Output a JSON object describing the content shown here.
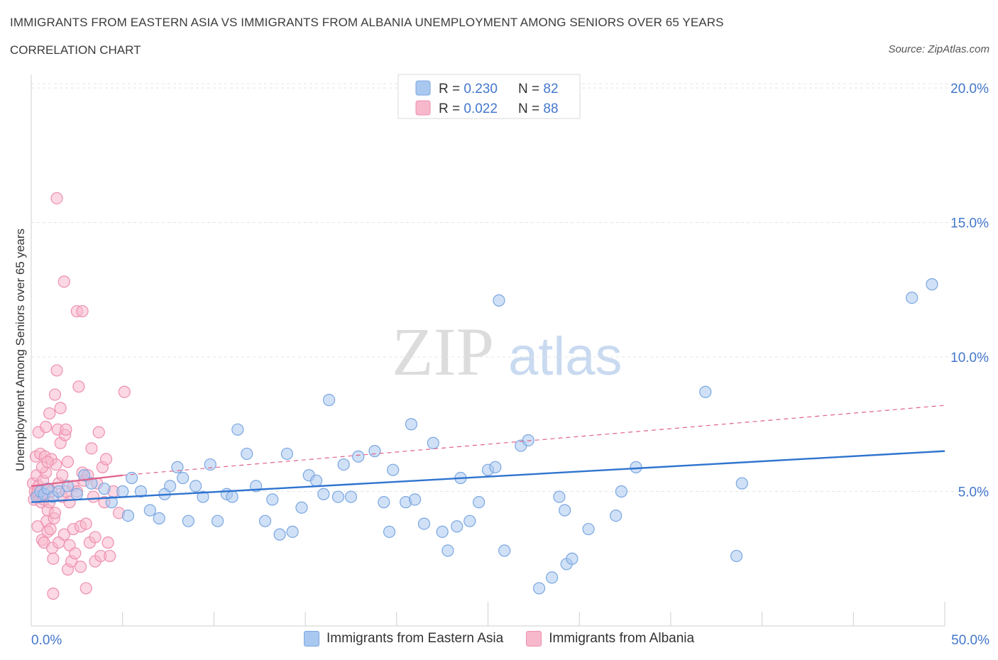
{
  "title": "IMMIGRANTS FROM EASTERN ASIA VS IMMIGRANTS FROM ALBANIA UNEMPLOYMENT AMONG SENIORS OVER 65 YEARS",
  "subtitle": "CORRELATION CHART",
  "source": "Source: ZipAtlas.com",
  "watermark": {
    "zip": "ZIP",
    "atlas": "atlas"
  },
  "colors": {
    "blue_fill": "#a9c8f0",
    "blue_stroke": "#7aa6e0",
    "blue_line": "#2f74cf",
    "pink_fill": "#f7b8cc",
    "pink_stroke": "#ee8fae",
    "pink_line": "#e0618a",
    "axis_text": "#4477cc"
  },
  "chart_data": {
    "type": "scatter",
    "title": "IMMIGRANTS FROM EASTERN ASIA VS IMMIGRANTS FROM ALBANIA UNEMPLOYMENT AMONG SENIORS OVER 65 YEARS",
    "xlabel": "",
    "ylabel": "Unemployment Among Seniors over 65 years",
    "xlim": [
      0,
      50
    ],
    "ylim": [
      0,
      20.5
    ],
    "x_tick_labels": [
      "0.0%",
      "50.0%"
    ],
    "y_ticks": [
      5,
      10,
      15,
      20
    ],
    "y_tick_labels": [
      "5.0%",
      "10.0%",
      "15.0%",
      "20.0%"
    ],
    "grid": true,
    "legend_stats": [
      {
        "r_label": "R = ",
        "r_value": "0.230",
        "n_label": "N = ",
        "n_value": "82"
      },
      {
        "r_label": "R = ",
        "r_value": "0.022",
        "n_label": "N = ",
        "n_value": "88"
      }
    ],
    "series": [
      {
        "name": "Immigrants from Eastern Asia",
        "trend": {
          "x0": 0,
          "y0": 4.6,
          "x1": 50,
          "y1": 6.5
        },
        "points": [
          [
            0.3,
            4.8
          ],
          [
            0.5,
            5.0
          ],
          [
            0.7,
            4.9
          ],
          [
            0.9,
            5.1
          ],
          [
            1.2,
            4.8
          ],
          [
            1.5,
            5.0
          ],
          [
            2.0,
            5.2
          ],
          [
            2.5,
            4.9
          ],
          [
            2.9,
            5.6
          ],
          [
            3.3,
            5.3
          ],
          [
            4.0,
            5.1
          ],
          [
            4.4,
            4.6
          ],
          [
            5.0,
            5.0
          ],
          [
            5.3,
            4.1
          ],
          [
            5.5,
            5.5
          ],
          [
            6.0,
            5.0
          ],
          [
            6.5,
            4.3
          ],
          [
            7.0,
            4.0
          ],
          [
            7.3,
            4.9
          ],
          [
            7.6,
            5.2
          ],
          [
            8.0,
            5.9
          ],
          [
            8.3,
            5.5
          ],
          [
            8.6,
            3.9
          ],
          [
            9.0,
            5.2
          ],
          [
            9.4,
            4.8
          ],
          [
            9.8,
            6.0
          ],
          [
            10.2,
            3.9
          ],
          [
            10.7,
            4.9
          ],
          [
            11.0,
            4.8
          ],
          [
            11.3,
            7.3
          ],
          [
            11.8,
            6.4
          ],
          [
            12.3,
            5.2
          ],
          [
            12.8,
            3.9
          ],
          [
            13.2,
            4.7
          ],
          [
            13.6,
            3.4
          ],
          [
            14.0,
            6.4
          ],
          [
            14.3,
            3.5
          ],
          [
            14.8,
            4.4
          ],
          [
            15.2,
            5.6
          ],
          [
            15.6,
            5.4
          ],
          [
            16.0,
            4.9
          ],
          [
            16.3,
            8.4
          ],
          [
            16.8,
            4.8
          ],
          [
            17.1,
            6.0
          ],
          [
            17.5,
            4.8
          ],
          [
            17.9,
            6.3
          ],
          [
            18.8,
            6.5
          ],
          [
            19.3,
            4.6
          ],
          [
            19.6,
            3.5
          ],
          [
            19.8,
            5.8
          ],
          [
            20.5,
            4.6
          ],
          [
            20.8,
            7.5
          ],
          [
            21.0,
            4.7
          ],
          [
            21.5,
            3.8
          ],
          [
            22.0,
            6.8
          ],
          [
            22.5,
            3.5
          ],
          [
            22.8,
            2.8
          ],
          [
            23.3,
            3.7
          ],
          [
            23.5,
            5.5
          ],
          [
            24.0,
            3.9
          ],
          [
            24.5,
            4.6
          ],
          [
            25.0,
            5.8
          ],
          [
            25.4,
            5.9
          ],
          [
            25.6,
            12.1
          ],
          [
            25.9,
            2.8
          ],
          [
            26.8,
            6.7
          ],
          [
            27.2,
            6.9
          ],
          [
            27.8,
            1.4
          ],
          [
            28.5,
            1.8
          ],
          [
            28.9,
            4.8
          ],
          [
            29.2,
            4.3
          ],
          [
            29.3,
            2.3
          ],
          [
            29.6,
            2.5
          ],
          [
            30.5,
            3.6
          ],
          [
            32.0,
            4.1
          ],
          [
            32.3,
            5.0
          ],
          [
            33.1,
            5.9
          ],
          [
            36.9,
            8.7
          ],
          [
            38.6,
            2.6
          ],
          [
            38.9,
            5.3
          ],
          [
            48.2,
            12.2
          ],
          [
            49.3,
            12.7
          ]
        ]
      },
      {
        "name": "Immigrants from Albania",
        "trend": {
          "x0": 0,
          "y0": 5.2,
          "x1": 5,
          "y1": 5.6,
          "dash_x1": 50,
          "dash_y1": 8.2
        },
        "points": [
          [
            0.1,
            5.3
          ],
          [
            0.15,
            4.7
          ],
          [
            0.2,
            5.0
          ],
          [
            0.25,
            6.3
          ],
          [
            0.3,
            4.9
          ],
          [
            0.3,
            5.6
          ],
          [
            0.35,
            3.7
          ],
          [
            0.4,
            7.2
          ],
          [
            0.4,
            5.2
          ],
          [
            0.45,
            4.8
          ],
          [
            0.5,
            6.4
          ],
          [
            0.5,
            5.0
          ],
          [
            0.55,
            4.6
          ],
          [
            0.6,
            3.2
          ],
          [
            0.65,
            5.4
          ],
          [
            0.7,
            4.7
          ],
          [
            0.7,
            3.1
          ],
          [
            0.75,
            6.3
          ],
          [
            0.8,
            7.4
          ],
          [
            0.8,
            5.7
          ],
          [
            0.85,
            3.9
          ],
          [
            0.9,
            4.3
          ],
          [
            0.9,
            3.5
          ],
          [
            0.95,
            5.1
          ],
          [
            1.0,
            7.9
          ],
          [
            1.0,
            4.6
          ],
          [
            1.05,
            3.6
          ],
          [
            1.1,
            6.2
          ],
          [
            1.1,
            5.0
          ],
          [
            1.15,
            2.9
          ],
          [
            1.2,
            2.5
          ],
          [
            1.2,
            1.2
          ],
          [
            1.25,
            4.0
          ],
          [
            1.3,
            8.6
          ],
          [
            1.3,
            4.2
          ],
          [
            1.35,
            6.0
          ],
          [
            1.4,
            15.9
          ],
          [
            1.4,
            9.5
          ],
          [
            1.45,
            7.3
          ],
          [
            1.5,
            5.3
          ],
          [
            1.5,
            3.1
          ],
          [
            1.6,
            8.1
          ],
          [
            1.6,
            6.8
          ],
          [
            1.7,
            5.6
          ],
          [
            1.7,
            4.8
          ],
          [
            1.8,
            12.8
          ],
          [
            1.8,
            3.4
          ],
          [
            1.85,
            7.1
          ],
          [
            1.9,
            7.3
          ],
          [
            1.9,
            5.0
          ],
          [
            2.0,
            2.1
          ],
          [
            2.0,
            6.1
          ],
          [
            2.1,
            3.0
          ],
          [
            2.1,
            4.6
          ],
          [
            2.2,
            2.4
          ],
          [
            2.3,
            3.6
          ],
          [
            2.3,
            5.2
          ],
          [
            2.4,
            2.7
          ],
          [
            2.5,
            11.7
          ],
          [
            2.5,
            5.0
          ],
          [
            2.6,
            8.9
          ],
          [
            2.7,
            3.7
          ],
          [
            2.7,
            2.2
          ],
          [
            2.8,
            11.7
          ],
          [
            2.8,
            5.7
          ],
          [
            2.9,
            5.4
          ],
          [
            3.0,
            1.4
          ],
          [
            3.0,
            3.8
          ],
          [
            3.1,
            5.6
          ],
          [
            3.2,
            3.1
          ],
          [
            3.3,
            6.6
          ],
          [
            3.4,
            4.8
          ],
          [
            3.5,
            2.4
          ],
          [
            3.5,
            3.3
          ],
          [
            3.6,
            5.3
          ],
          [
            3.7,
            7.2
          ],
          [
            3.8,
            2.6
          ],
          [
            3.9,
            5.9
          ],
          [
            4.0,
            4.6
          ],
          [
            4.1,
            6.2
          ],
          [
            4.2,
            3.1
          ],
          [
            4.3,
            2.6
          ],
          [
            4.5,
            5.0
          ],
          [
            4.8,
            4.2
          ],
          [
            0.35,
            5.0
          ],
          [
            0.6,
            5.9
          ],
          [
            0.9,
            6.1
          ],
          [
            5.1,
            8.7
          ]
        ]
      }
    ]
  },
  "legend_bottom": [
    "Immigrants from Eastern Asia",
    "Immigrants from Albania"
  ]
}
